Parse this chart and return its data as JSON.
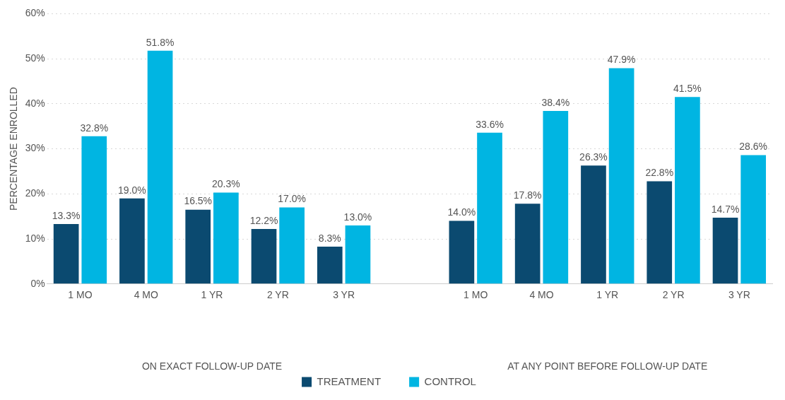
{
  "chart_data": {
    "type": "bar",
    "ylabel": "PERCENTAGE ENROLLED",
    "categories": [
      "1 MO",
      "4 MO",
      "1 YR",
      "2 YR",
      "3 YR",
      null,
      "1 MO",
      "4 MO",
      "1 YR",
      "2 YR",
      "3 YR"
    ],
    "series": [
      {
        "name": "TREATMENT",
        "color": "#0b4a70",
        "values": [
          13.3,
          19.0,
          16.5,
          12.2,
          8.3,
          null,
          14.0,
          17.8,
          26.3,
          22.8,
          14.7
        ],
        "value_labels": [
          "13.3%",
          "19.0%",
          "16.5%",
          "12.2%",
          "8.3%",
          null,
          "14.0%",
          "17.8%",
          "26.3%",
          "22.8%",
          "14.7%"
        ]
      },
      {
        "name": "CONTROL",
        "color": "#00b5e2",
        "values": [
          32.8,
          51.8,
          20.3,
          17.0,
          13.0,
          null,
          33.6,
          38.4,
          47.9,
          41.5,
          28.6
        ],
        "value_labels": [
          "32.8%",
          "51.8%",
          "20.3%",
          "17.0%",
          "13.0%",
          null,
          "33.6%",
          "38.4%",
          "47.9%",
          "41.5%",
          "28.6%"
        ]
      }
    ],
    "annotations": [
      "ON EXACT FOLLOW-UP DATE",
      "AT ANY POINT BEFORE FOLLOW-UP DATE"
    ],
    "ylim": [
      0,
      60
    ],
    "yticks": [
      {
        "value": 0,
        "label": "0%"
      },
      {
        "value": 10,
        "label": "10%"
      },
      {
        "value": 20,
        "label": "20%"
      },
      {
        "value": 30,
        "label": "30%"
      },
      {
        "value": 40,
        "label": "40%"
      },
      {
        "value": 50,
        "label": "50%"
      },
      {
        "value": 60,
        "label": "60%"
      }
    ],
    "grid": "y",
    "legend": "bottom"
  }
}
